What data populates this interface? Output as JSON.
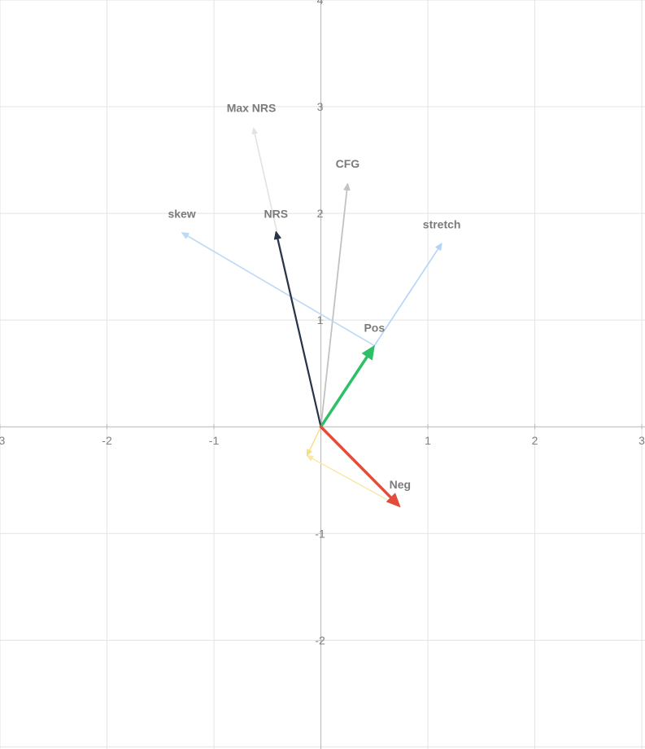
{
  "chart_data": {
    "type": "vector",
    "title": "",
    "xlabel": "",
    "ylabel": "",
    "xlim": [
      -3,
      3.03
    ],
    "ylim": [
      -3.02,
      4.0
    ],
    "grid": true,
    "x_ticks": [
      -3,
      -2,
      -1,
      1,
      2,
      3
    ],
    "y_ticks": [
      4,
      3,
      2,
      1,
      -1,
      -2
    ],
    "vectors": [
      {
        "name": "Max NRS",
        "from": [
          0,
          0
        ],
        "to": [
          -0.63,
          2.8
        ],
        "color": "#e2e2e2",
        "width": 1.6,
        "head": 7,
        "label_at": [
          -0.65,
          2.95
        ]
      },
      {
        "name": "CFG",
        "from": [
          0,
          0
        ],
        "to": [
          0.25,
          2.28
        ],
        "color": "#c2c2c2",
        "width": 1.8,
        "head": 8,
        "label_at": [
          0.25,
          2.43
        ]
      },
      {
        "name": "skew",
        "from": [
          0.5,
          0.76
        ],
        "to": [
          -1.3,
          1.82
        ],
        "color": "#bcd9f5",
        "width": 1.6,
        "head": 8,
        "label_at": [
          -1.3,
          1.96
        ]
      },
      {
        "name": "stretch",
        "from": [
          0.5,
          0.76
        ],
        "to": [
          1.13,
          1.72
        ],
        "color": "#b4d4f4",
        "width": 1.6,
        "head": 8,
        "label_at": [
          1.13,
          1.86
        ]
      },
      {
        "name": "NRS",
        "from": [
          0,
          0
        ],
        "to": [
          -0.42,
          1.83
        ],
        "color": "#283548",
        "width": 2.2,
        "head": 9,
        "label_at": [
          -0.42,
          1.96
        ]
      },
      {
        "name": "",
        "from": [
          0.74,
          -0.75
        ],
        "to": [
          -0.13,
          -0.27
        ],
        "color": "#f8e8a8",
        "width": 1.4,
        "head": 7,
        "label_at": null
      },
      {
        "name": "",
        "from": [
          0,
          0
        ],
        "to": [
          -0.13,
          -0.27
        ],
        "color": "#f6de86",
        "width": 1.4,
        "head": 7,
        "label_at": null
      },
      {
        "name": "Pos",
        "from": [
          0,
          0
        ],
        "to": [
          0.5,
          0.76
        ],
        "color": "#2ec067",
        "width": 3.5,
        "head": 16,
        "label_at": [
          0.5,
          0.89
        ]
      },
      {
        "name": "Neg",
        "from": [
          0,
          0
        ],
        "to": [
          0.74,
          -0.75
        ],
        "color": "#e14d3a",
        "width": 3.5,
        "head": 16,
        "label_at": [
          0.74,
          -0.58
        ]
      }
    ]
  }
}
